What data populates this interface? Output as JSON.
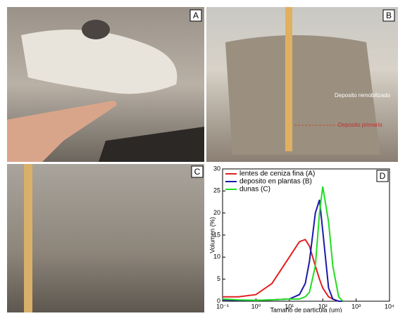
{
  "panels": {
    "a": {
      "letter": "A"
    },
    "b": {
      "letter": "B",
      "annotations": [
        "Deposito remobilizado",
        "Deposito primario"
      ]
    },
    "c": {
      "letter": "C"
    }
  },
  "chart_data": {
    "type": "line",
    "letter": "D",
    "x_label": "Tamaño de particula (um)",
    "y_label": "Volumen (%)",
    "log_x": true,
    "x": [
      0.1,
      0.3,
      1,
      3,
      10,
      20,
      30,
      40,
      60,
      80,
      100,
      150,
      200,
      300,
      400
    ],
    "series": [
      {
        "name": "lentes de ceniza fina (A)",
        "color": "#e02020",
        "values": [
          1,
          1,
          1.5,
          4,
          10,
          13.5,
          14,
          12.5,
          8,
          5,
          3,
          1,
          0.5,
          0,
          0
        ]
      },
      {
        "name": "deposito en plantas (B)",
        "color": "#1a1aa8",
        "values": [
          0.3,
          0.2,
          0.2,
          0.3,
          0.5,
          1.5,
          4,
          9,
          20,
          23,
          16,
          3,
          0.5,
          0,
          0
        ]
      },
      {
        "name": "dunas (C)",
        "color": "#22dd22",
        "values": [
          0.5,
          0.3,
          0.2,
          0.3,
          0.5,
          0.5,
          1,
          2,
          8,
          20,
          26,
          18,
          8,
          1,
          0
        ]
      }
    ],
    "xlim": [
      0.1,
      10000
    ],
    "xticks": [
      {
        "value": 0.1,
        "label": "10⁻¹"
      },
      {
        "value": 1,
        "label": "10⁰"
      },
      {
        "value": 10,
        "label": "10¹"
      },
      {
        "value": 100,
        "label": "10²"
      },
      {
        "value": 1000,
        "label": "10³"
      },
      {
        "value": 10000,
        "label": "10⁴"
      }
    ],
    "ylim": [
      0,
      30
    ],
    "yticks": [
      0,
      5,
      10,
      15,
      20,
      25,
      30
    ]
  }
}
